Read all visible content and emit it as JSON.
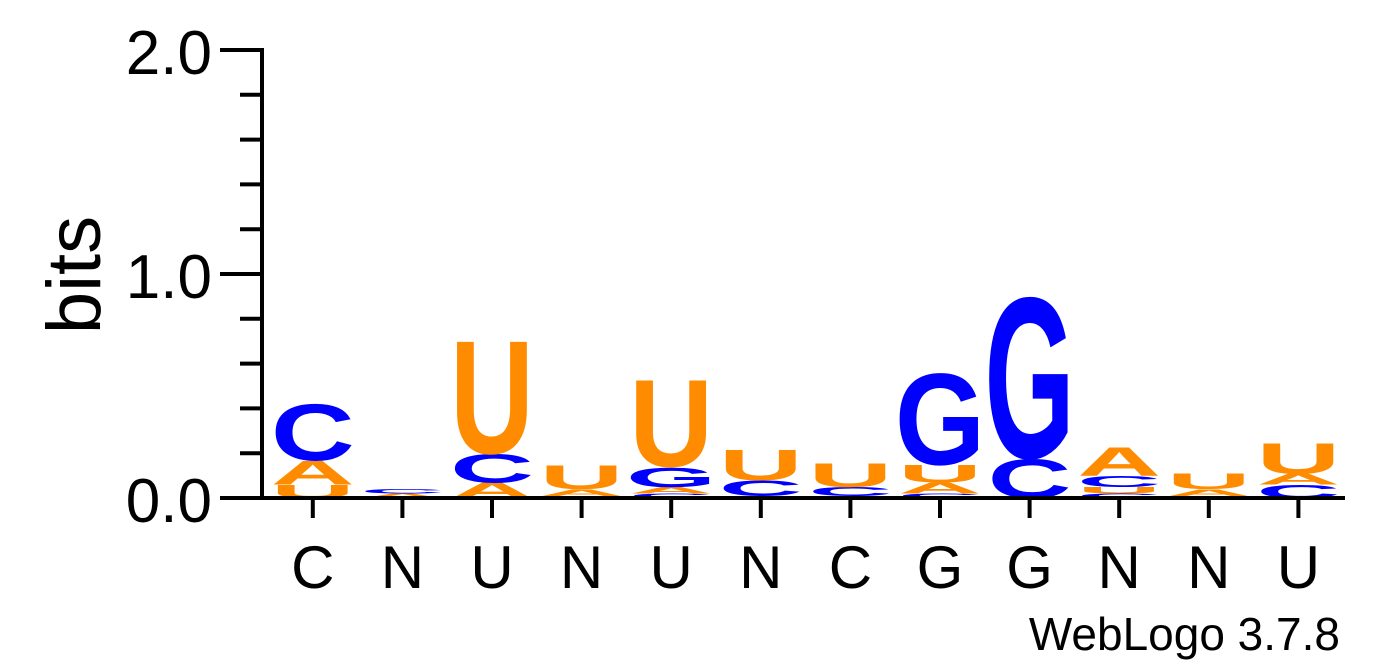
{
  "chart_data": {
    "type": "sequence-logo",
    "ylabel": "bits",
    "ylim": [
      0,
      2.0
    ],
    "y_ticks": [
      "0.0",
      "1.0",
      "2.0"
    ],
    "x_labels": [
      "C",
      "N",
      "U",
      "N",
      "U",
      "N",
      "C",
      "G",
      "G",
      "N",
      "N",
      "U"
    ],
    "colors": {
      "A": "#ff8c00",
      "U": "#ff8c00",
      "C": "#0000ff",
      "G": "#0000ff"
    },
    "positions": [
      {
        "stack": [
          {
            "letter": "U",
            "bits": 0.06
          },
          {
            "letter": "A",
            "bits": 0.11
          },
          {
            "letter": "C",
            "bits": 0.26
          }
        ]
      },
      {
        "stack": [
          {
            "letter": "A",
            "bits": 0.02
          },
          {
            "letter": "C",
            "bits": 0.02
          }
        ]
      },
      {
        "stack": [
          {
            "letter": "A",
            "bits": 0.07
          },
          {
            "letter": "C",
            "bits": 0.13
          },
          {
            "letter": "U",
            "bits": 0.52
          }
        ]
      },
      {
        "stack": [
          {
            "letter": "C",
            "bits": 0.01
          },
          {
            "letter": "A",
            "bits": 0.03
          },
          {
            "letter": "U",
            "bits": 0.11
          }
        ]
      },
      {
        "stack": [
          {
            "letter": "C",
            "bits": 0.02
          },
          {
            "letter": "A",
            "bits": 0.03
          },
          {
            "letter": "G",
            "bits": 0.09
          },
          {
            "letter": "U",
            "bits": 0.4
          }
        ]
      },
      {
        "stack": [
          {
            "letter": "A",
            "bits": 0.01
          },
          {
            "letter": "C",
            "bits": 0.07
          },
          {
            "letter": "U",
            "bits": 0.14
          }
        ]
      },
      {
        "stack": [
          {
            "letter": "A",
            "bits": 0.01
          },
          {
            "letter": "C",
            "bits": 0.04
          },
          {
            "letter": "U",
            "bits": 0.11
          }
        ]
      },
      {
        "stack": [
          {
            "letter": "C",
            "bits": 0.02
          },
          {
            "letter": "A",
            "bits": 0.05
          },
          {
            "letter": "U",
            "bits": 0.08
          },
          {
            "letter": "G",
            "bits": 0.42
          }
        ]
      },
      {
        "stack": [
          {
            "letter": "C",
            "bits": 0.18
          },
          {
            "letter": "G",
            "bits": 0.74
          }
        ]
      },
      {
        "stack": [
          {
            "letter": "C",
            "bits": 0.02
          },
          {
            "letter": "U",
            "bits": 0.03
          },
          {
            "letter": "C",
            "bits": 0.05
          },
          {
            "letter": "A",
            "bits": 0.13
          }
        ]
      },
      {
        "stack": [
          {
            "letter": "C",
            "bits": 0.01
          },
          {
            "letter": "A",
            "bits": 0.03
          },
          {
            "letter": "U",
            "bits": 0.07
          }
        ]
      },
      {
        "stack": [
          {
            "letter": "C",
            "bits": 0.06
          },
          {
            "letter": "A",
            "bits": 0.05
          },
          {
            "letter": "U",
            "bits": 0.14
          }
        ]
      }
    ]
  },
  "footer": {
    "credit": "WebLogo 3.7.8"
  }
}
